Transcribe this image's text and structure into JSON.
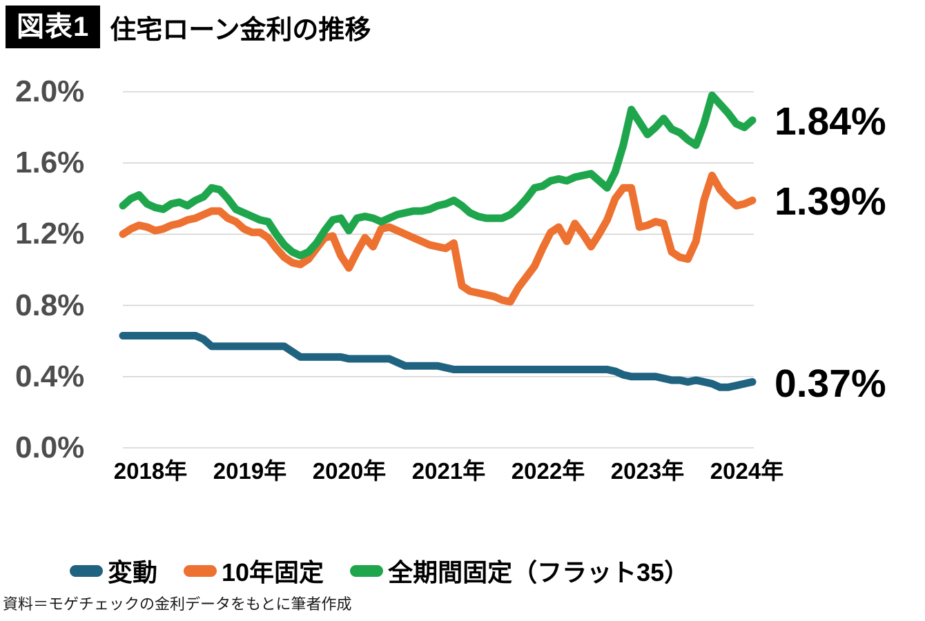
{
  "figure": {
    "badge_label": "図表1",
    "title": "住宅ローン金利の推移",
    "source_note": "資料＝モゲチェックの金利データをもとに筆者作成"
  },
  "colors": {
    "background": "#ffffff",
    "gridline": "#d4d4d4",
    "axis_label": "#4d4d4d",
    "text": "#000000",
    "badge_bg": "#000000",
    "badge_text": "#ffffff",
    "variable_blue": "#1f6380",
    "fixed10_orange": "#ed7130",
    "flat35_green": "#1fa64d"
  },
  "chart_data": {
    "type": "line",
    "title": "住宅ローン金利の推移",
    "x_unit": "month",
    "grid": "horizontal",
    "legend_position": "bottom",
    "ylim": [
      0,
      2.0
    ],
    "yticks": [
      "0.0%",
      "0.4%",
      "0.8%",
      "1.2%",
      "1.6%",
      "2.0%"
    ],
    "xtick_labels": [
      "2018年",
      "2019年",
      "2020年",
      "2021年",
      "2022年",
      "2023年",
      "2024年"
    ],
    "x": [
      "2018-01",
      "2018-02",
      "2018-03",
      "2018-04",
      "2018-05",
      "2018-06",
      "2018-07",
      "2018-08",
      "2018-09",
      "2018-10",
      "2018-11",
      "2018-12",
      "2019-01",
      "2019-02",
      "2019-03",
      "2019-04",
      "2019-05",
      "2019-06",
      "2019-07",
      "2019-08",
      "2019-09",
      "2019-10",
      "2019-11",
      "2019-12",
      "2020-01",
      "2020-02",
      "2020-03",
      "2020-04",
      "2020-05",
      "2020-06",
      "2020-07",
      "2020-08",
      "2020-09",
      "2020-10",
      "2020-11",
      "2020-12",
      "2021-01",
      "2021-02",
      "2021-03",
      "2021-04",
      "2021-05",
      "2021-06",
      "2021-07",
      "2021-08",
      "2021-09",
      "2021-10",
      "2021-11",
      "2021-12",
      "2022-01",
      "2022-02",
      "2022-03",
      "2022-04",
      "2022-05",
      "2022-06",
      "2022-07",
      "2022-08",
      "2022-09",
      "2022-10",
      "2022-11",
      "2022-12",
      "2023-01",
      "2023-02",
      "2023-03",
      "2023-04",
      "2023-05",
      "2023-06",
      "2023-07",
      "2023-08",
      "2023-09",
      "2023-10",
      "2023-11",
      "2023-12",
      "2024-01",
      "2024-02",
      "2024-03",
      "2024-04",
      "2024-05",
      "2024-06",
      "2024-07"
    ],
    "series": [
      {
        "name": "変動",
        "color": "#1f6380",
        "end_label": "0.37%",
        "values": [
          0.63,
          0.63,
          0.63,
          0.63,
          0.63,
          0.63,
          0.63,
          0.63,
          0.63,
          0.63,
          0.61,
          0.57,
          0.57,
          0.57,
          0.57,
          0.57,
          0.57,
          0.57,
          0.57,
          0.57,
          0.57,
          0.54,
          0.51,
          0.51,
          0.51,
          0.51,
          0.51,
          0.51,
          0.5,
          0.5,
          0.5,
          0.5,
          0.5,
          0.5,
          0.48,
          0.46,
          0.46,
          0.46,
          0.46,
          0.46,
          0.45,
          0.44,
          0.44,
          0.44,
          0.44,
          0.44,
          0.44,
          0.44,
          0.44,
          0.44,
          0.44,
          0.44,
          0.44,
          0.44,
          0.44,
          0.44,
          0.44,
          0.44,
          0.44,
          0.44,
          0.44,
          0.43,
          0.41,
          0.4,
          0.4,
          0.4,
          0.4,
          0.39,
          0.38,
          0.38,
          0.37,
          0.38,
          0.37,
          0.36,
          0.34,
          0.34,
          0.35,
          0.36,
          0.37
        ]
      },
      {
        "name": "10年固定",
        "color": "#ed7130",
        "end_label": "1.39%",
        "values": [
          1.2,
          1.23,
          1.25,
          1.24,
          1.22,
          1.23,
          1.25,
          1.26,
          1.28,
          1.29,
          1.31,
          1.33,
          1.33,
          1.29,
          1.27,
          1.23,
          1.21,
          1.21,
          1.18,
          1.12,
          1.07,
          1.04,
          1.03,
          1.06,
          1.12,
          1.18,
          1.19,
          1.08,
          1.01,
          1.1,
          1.18,
          1.13,
          1.23,
          1.24,
          1.22,
          1.2,
          1.18,
          1.16,
          1.14,
          1.13,
          1.12,
          1.15,
          0.91,
          0.88,
          0.87,
          0.86,
          0.85,
          0.83,
          0.82,
          0.9,
          0.96,
          1.02,
          1.12,
          1.21,
          1.24,
          1.16,
          1.26,
          1.2,
          1.13,
          1.2,
          1.28,
          1.4,
          1.46,
          1.46,
          1.24,
          1.25,
          1.27,
          1.26,
          1.1,
          1.07,
          1.06,
          1.16,
          1.39,
          1.53,
          1.45,
          1.4,
          1.36,
          1.37,
          1.39
        ]
      },
      {
        "name": "全期間固定（フラット35）",
        "color": "#1fa64d",
        "end_label": "1.84%",
        "values": [
          1.36,
          1.4,
          1.42,
          1.37,
          1.35,
          1.34,
          1.37,
          1.38,
          1.36,
          1.39,
          1.41,
          1.46,
          1.45,
          1.4,
          1.34,
          1.32,
          1.3,
          1.28,
          1.27,
          1.2,
          1.14,
          1.1,
          1.08,
          1.1,
          1.15,
          1.22,
          1.28,
          1.29,
          1.22,
          1.29,
          1.3,
          1.29,
          1.27,
          1.29,
          1.31,
          1.32,
          1.33,
          1.33,
          1.34,
          1.36,
          1.37,
          1.39,
          1.36,
          1.32,
          1.3,
          1.29,
          1.29,
          1.29,
          1.31,
          1.35,
          1.4,
          1.46,
          1.47,
          1.5,
          1.51,
          1.5,
          1.52,
          1.53,
          1.54,
          1.5,
          1.46,
          1.55,
          1.7,
          1.9,
          1.83,
          1.76,
          1.8,
          1.85,
          1.79,
          1.77,
          1.73,
          1.7,
          1.82,
          1.98,
          1.93,
          1.88,
          1.82,
          1.8,
          1.84
        ]
      }
    ]
  }
}
